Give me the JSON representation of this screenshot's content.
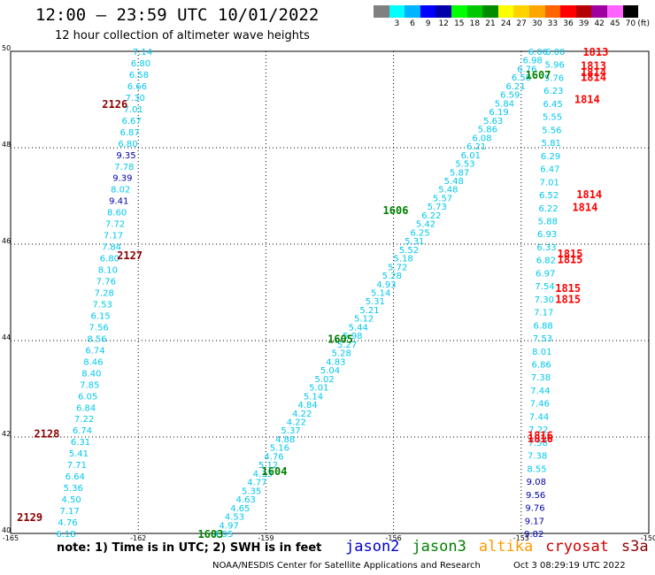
{
  "header": {
    "title": "12:00 – 23:59 UTC 10/01/2022",
    "subtitle": "12 hour collection of altimeter wave heights"
  },
  "legend": {
    "unit": "(ft)",
    "stops": [
      {
        "label": "",
        "color": "#808080"
      },
      {
        "label": "3",
        "color": "#00ffff"
      },
      {
        "label": "6",
        "color": "#00b4ff"
      },
      {
        "label": "9",
        "color": "#0000ff"
      },
      {
        "label": "12",
        "color": "#0000aa"
      },
      {
        "label": "15",
        "color": "#00ff00"
      },
      {
        "label": "18",
        "color": "#00c800"
      },
      {
        "label": "21",
        "color": "#008c00"
      },
      {
        "label": "24",
        "color": "#ffff00"
      },
      {
        "label": "27",
        "color": "#ffd200"
      },
      {
        "label": "30",
        "color": "#ffa500"
      },
      {
        "label": "33",
        "color": "#ff6400"
      },
      {
        "label": "36",
        "color": "#ff0000"
      },
      {
        "label": "39",
        "color": "#b40000"
      },
      {
        "label": "42",
        "color": "#a000a0"
      },
      {
        "label": "45",
        "color": "#ff64ff"
      },
      {
        "label": "70",
        "color": "#000000"
      }
    ]
  },
  "axes": {
    "x_ticks": [
      "-165",
      "-162",
      "-159",
      "-156",
      "-153",
      "-150"
    ],
    "y_ticks": [
      "40",
      "42",
      "44",
      "46",
      "48",
      "50"
    ],
    "lon_range": [
      -165,
      -150
    ],
    "lat_range": [
      40,
      50
    ]
  },
  "colors": {
    "cyan": "#00c8ee",
    "navy": "#0000aa",
    "green": "#008000",
    "red": "#ff0000",
    "darkred": "#8b0000"
  },
  "passes": {
    "p2126": {
      "id": "2126",
      "lon": -162.55,
      "lat": 48.9,
      "color": "darkred",
      "from": [
        -161.9,
        50.0
      ],
      "to": [
        -163.7,
        40.0
      ],
      "values": [
        "7.14",
        "6.80",
        "6.58",
        "6.66",
        "7.30",
        "7.01",
        "6.67",
        "6.87",
        "6.80",
        "9.35",
        "7.78",
        "9.39",
        "8.02",
        "9.41",
        "8.60",
        "7.72",
        "7.17",
        "7.84",
        "6.80",
        "8.10",
        "7.76",
        "7.28",
        "7.53",
        "6.15",
        "7.56",
        "8.56",
        "6.74",
        "8.46",
        "8.40",
        "7.85",
        "6.05",
        "6.84",
        "7.22",
        "6.74",
        "6.31",
        "5.41",
        "7.71",
        "6.64",
        "5.36",
        "4.50",
        "7.17",
        "4.76",
        "6.18"
      ],
      "colors": [
        "c",
        "c",
        "c",
        "c",
        "c",
        "c",
        "c",
        "c",
        "c",
        "n",
        "c",
        "n",
        "c",
        "n",
        "c",
        "c",
        "c",
        "c",
        "c",
        "c",
        "c",
        "c",
        "c",
        "c",
        "c",
        "c",
        "c",
        "c",
        "c",
        "c",
        "c",
        "c",
        "c",
        "c",
        "c",
        "c",
        "c",
        "c",
        "c",
        "c",
        "c",
        "c",
        "c"
      ]
    },
    "p1606": {
      "id": "1606",
      "lon": -155.95,
      "lat": 46.7,
      "color": "green",
      "from": [
        -152.6,
        50.0
      ],
      "to": [
        -160.0,
        40.0
      ],
      "values": [
        "6.00",
        "6.98",
        "6.76",
        "6.58",
        "6.21",
        "6.59",
        "5.84",
        "6.19",
        "5.63",
        "5.86",
        "6.08",
        "6.21",
        "6.01",
        "5.53",
        "5.87",
        "5.48",
        "5.48",
        "5.57",
        "5.73",
        "6.22",
        "5.42",
        "6.25",
        "5.31",
        "5.52",
        "5.18",
        "5.72",
        "5.28",
        "4.93",
        "5.14",
        "5.31",
        "5.21",
        "5.12",
        "5.44",
        "5.98",
        "5.27",
        "5.28",
        "4.83",
        "5.04",
        "5.02",
        "5.01",
        "5.14",
        "4.84",
        "4.22",
        "4.22",
        "5.37",
        "4.88",
        "5.16",
        "4.76",
        "5.12",
        "4.33",
        "4.77",
        "5.35",
        "4.63",
        "4.65",
        "4.53",
        "4.97",
        "4.95"
      ],
      "colors": [
        "c",
        "c",
        "c",
        "c",
        "c",
        "c",
        "c",
        "c",
        "c",
        "c",
        "c",
        "c",
        "c",
        "c",
        "c",
        "c",
        "c",
        "c",
        "c",
        "c",
        "c",
        "c",
        "c",
        "c",
        "c",
        "c",
        "c",
        "c",
        "c",
        "c",
        "c",
        "c",
        "c",
        "c",
        "c",
        "c",
        "c",
        "c",
        "c",
        "c",
        "c",
        "c",
        "c",
        "c",
        "c",
        "c",
        "c",
        "c",
        "c",
        "c",
        "c",
        "c",
        "c",
        "c",
        "c",
        "c",
        "c"
      ]
    },
    "p1814": {
      "id": "1814",
      "lon": -151.5,
      "lat": 46.9,
      "color": "red",
      "from": [
        -152.2,
        50.0
      ],
      "to": [
        -152.7,
        40.0
      ],
      "values": [
        "6.00",
        "5.96",
        "5.76",
        "6.23",
        "6.45",
        "5.55",
        "5.56",
        "5.81",
        "6.29",
        "6.47",
        "7.01",
        "6.52",
        "6.22",
        "5.88",
        "6.93",
        "6.33",
        "6.82",
        "6.97",
        "7.54",
        "7.30",
        "7.17",
        "6.88",
        "7.53",
        "8.01",
        "6.86",
        "7.38",
        "7.44",
        "7.46",
        "7.44",
        "7.22",
        "7.58",
        "7.38",
        "8.55",
        "9.08",
        "9.56",
        "9.76",
        "9.17",
        "9.82"
      ],
      "colors": [
        "c",
        "c",
        "c",
        "c",
        "c",
        "c",
        "c",
        "c",
        "c",
        "c",
        "c",
        "c",
        "c",
        "c",
        "c",
        "c",
        "c",
        "c",
        "c",
        "c",
        "c",
        "c",
        "c",
        "c",
        "c",
        "c",
        "c",
        "c",
        "c",
        "c",
        "c",
        "c",
        "c",
        "n",
        "n",
        "n",
        "n",
        "n"
      ]
    },
    "labels": [
      {
        "id": "2126",
        "lon": -162.55,
        "lat": 48.92,
        "color": "darkred"
      },
      {
        "id": "2127",
        "lon": -162.2,
        "lat": 45.78,
        "color": "darkred"
      },
      {
        "id": "2128",
        "lon": -164.15,
        "lat": 42.08,
        "color": "darkred"
      },
      {
        "id": "2129",
        "lon": -164.55,
        "lat": 40.35,
        "color": "darkred"
      },
      {
        "id": "1607",
        "lon": -152.6,
        "lat": 49.52,
        "color": "green"
      },
      {
        "id": "1606",
        "lon": -155.95,
        "lat": 46.72,
        "color": "green"
      },
      {
        "id": "1605",
        "lon": -157.25,
        "lat": 44.05,
        "color": "green"
      },
      {
        "id": "1604",
        "lon": -158.8,
        "lat": 41.3,
        "color": "green"
      },
      {
        "id": "1603",
        "lon": -160.3,
        "lat": 40.0,
        "color": "green"
      },
      {
        "id": "1813",
        "lon": -151.25,
        "lat": 50.0,
        "color": "red"
      },
      {
        "id": "1813",
        "lon": -151.3,
        "lat": 49.72,
        "color": "red"
      },
      {
        "id": "1814",
        "lon": -151.3,
        "lat": 49.58,
        "color": "red"
      },
      {
        "id": "1814",
        "lon": -151.3,
        "lat": 49.48,
        "color": "red"
      },
      {
        "id": "1814",
        "lon": -151.45,
        "lat": 49.02,
        "color": "red"
      },
      {
        "id": "1814",
        "lon": -151.4,
        "lat": 47.05,
        "color": "red"
      },
      {
        "id": "1814",
        "lon": -151.5,
        "lat": 46.78,
        "color": "red"
      },
      {
        "id": "1815",
        "lon": -151.85,
        "lat": 45.82,
        "color": "red"
      },
      {
        "id": "1815",
        "lon": -151.85,
        "lat": 45.7,
        "color": "red"
      },
      {
        "id": "1815",
        "lon": -151.9,
        "lat": 45.1,
        "color": "red"
      },
      {
        "id": "1815",
        "lon": -151.9,
        "lat": 44.87,
        "color": "red"
      },
      {
        "id": "1816",
        "lon": -152.55,
        "lat": 42.05,
        "color": "red"
      },
      {
        "id": "1816",
        "lon": -152.55,
        "lat": 41.98,
        "color": "red"
      }
    ]
  },
  "note": "note:  1) Time is in UTC;  2) SWH is in feet",
  "missions": [
    {
      "name": "jason2",
      "color": "#0000cc"
    },
    {
      "name": "jason3",
      "color": "#008000"
    },
    {
      "name": "altika",
      "color": "#ff9900"
    },
    {
      "name": "cryosat",
      "color": "#cc0000"
    },
    {
      "name": "s3a",
      "color": "#8b0000"
    }
  ],
  "credit": "NOAA/NESDIS Center for Satellite Applications and Research",
  "timestamp": "Oct  3 08:29:19 UTC 2022"
}
